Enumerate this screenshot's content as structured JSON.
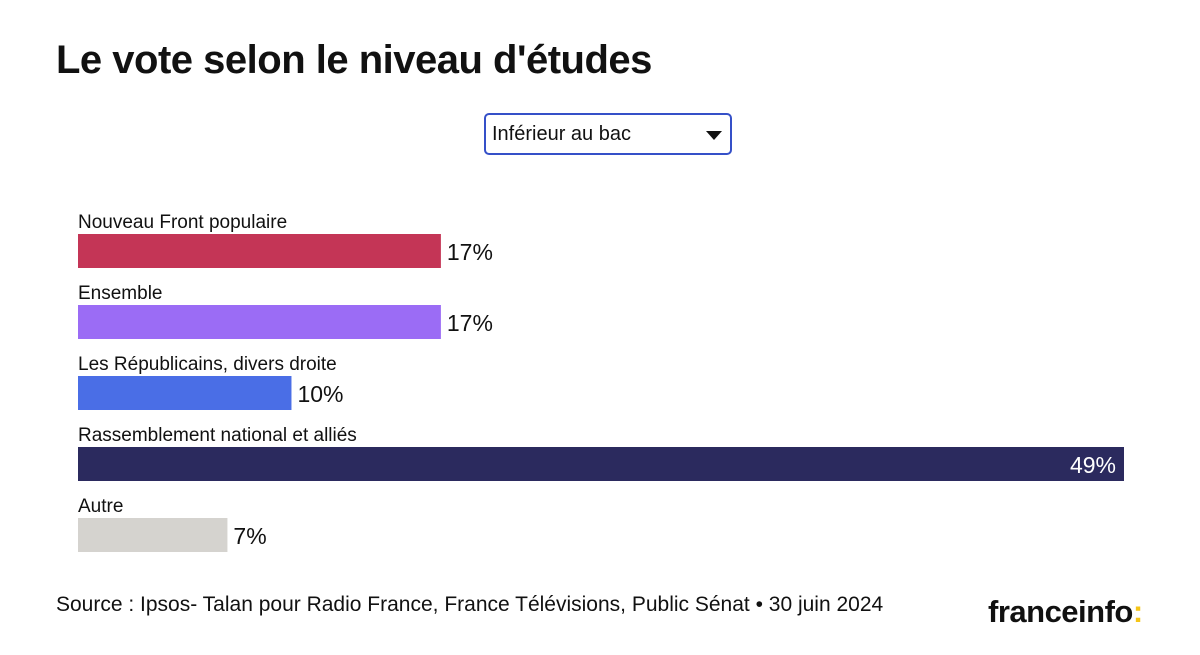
{
  "title": "Le vote selon le niveau d'études",
  "selector": {
    "selected": "Inférieur au bac"
  },
  "chart_data": {
    "type": "bar",
    "orientation": "horizontal",
    "title": "Le vote selon le niveau d'études",
    "categories": [
      "Nouveau Front populaire",
      "Ensemble",
      "Les Républicains, divers droite",
      "Rassemblement national et alliés",
      "Autre"
    ],
    "values": [
      17,
      17,
      10,
      49,
      7
    ],
    "value_labels": [
      "17%",
      "17%",
      "10%",
      "49%",
      "7%"
    ],
    "colors": [
      "#c43556",
      "#9b6cf5",
      "#4a6ee6",
      "#2b2a5e",
      "#d5d3cf"
    ],
    "xlim": [
      0,
      49
    ],
    "grid": false,
    "legend": "none"
  },
  "source": "Source : Ipsos- Talan pour Radio France, France Télévisions, Public Sénat • 30 juin 2024",
  "logo": {
    "text": "franceinfo",
    "colon": ":"
  }
}
